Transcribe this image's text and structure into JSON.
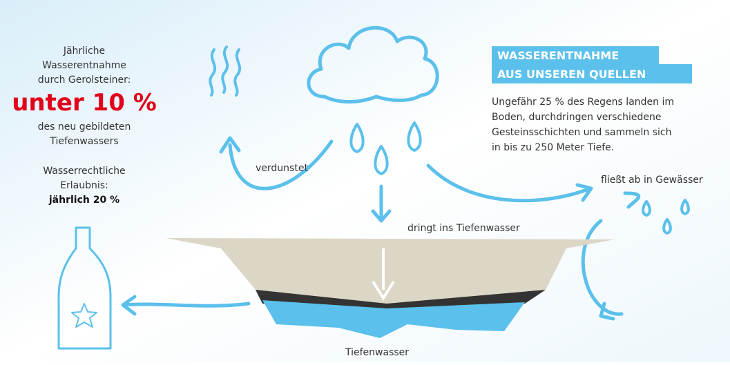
{
  "left_panel": {
    "intro": [
      "Jährliche",
      "Wasserentnahme",
      "durch Gerolsteiner:"
    ],
    "highlight": "unter 10 %",
    "after": [
      "des neu gebildeten",
      "Tiefenwassers"
    ],
    "permit": [
      "Wasserrechtliche",
      "Erlaubnis:"
    ],
    "permit_value": "jährlich 20 %"
  },
  "info_box": {
    "heading": [
      "WASSERENTNAHME",
      "AUS UNSEREN QUELLEN"
    ],
    "body": [
      "Ungefähr 25 % des Regens landen im",
      "Boden, durchdringen verschiedene",
      "Gesteinsschichten und sammeln sich",
      "in bis zu 250 Meter Tiefe."
    ]
  },
  "labels": {
    "evaporates": "verdunstet",
    "seeps": "dringt ins Tiefenwasser",
    "runoff": "fließt ab in Gewässer",
    "groundwater": "Tiefenwasser"
  }
}
